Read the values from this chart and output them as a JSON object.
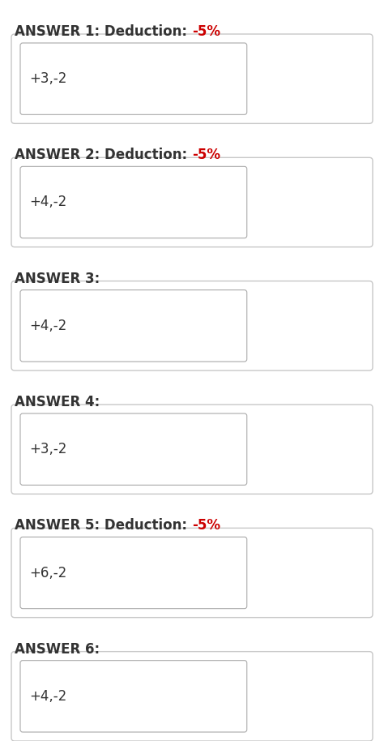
{
  "background_color": "#ffffff",
  "answers": [
    {
      "label": "ANSWER 1: Deduction: ",
      "deduction": "-5%",
      "has_deduction": true,
      "value": "+3,-2"
    },
    {
      "label": "ANSWER 2: Deduction: ",
      "deduction": "-5%",
      "has_deduction": true,
      "value": "+4,-2"
    },
    {
      "label": "ANSWER 3:",
      "deduction": "",
      "has_deduction": false,
      "value": "+4,-2"
    },
    {
      "label": "ANSWER 4:",
      "deduction": "",
      "has_deduction": false,
      "value": "+3,-2"
    },
    {
      "label": "ANSWER 5: Deduction: ",
      "deduction": "-5%",
      "has_deduction": true,
      "value": "+6,-2"
    },
    {
      "label": "ANSWER 6:",
      "deduction": "",
      "has_deduction": false,
      "value": "+4,-2"
    }
  ],
  "label_color": "#333333",
  "deduction_color": "#cc0000",
  "label_fontsize": 12,
  "value_fontsize": 12,
  "outer_box_edge_color": "#c8c8c8",
  "inner_box_edge_color": "#aaaaaa",
  "page_bg": "#f5f5f5"
}
